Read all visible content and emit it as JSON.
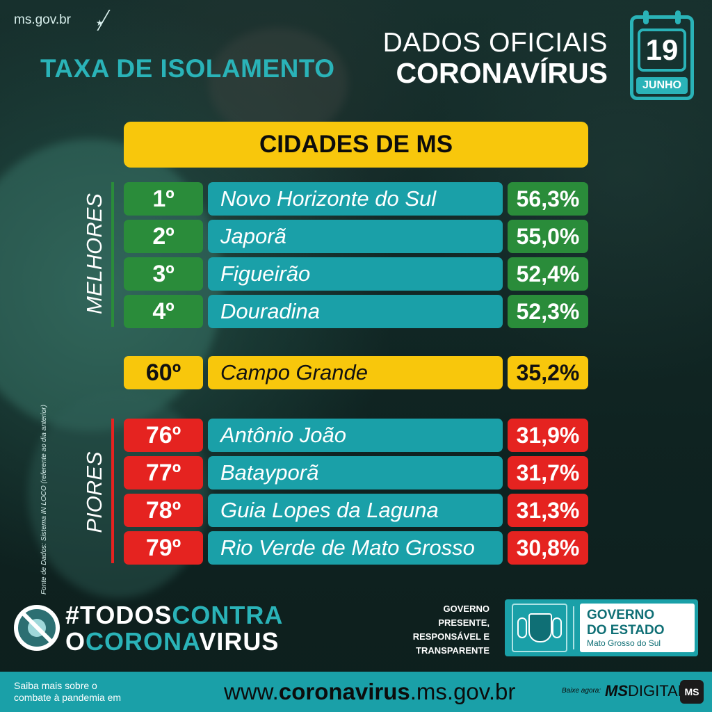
{
  "header": {
    "site": "ms.gov.br",
    "title": "TAXA DE ISOLAMENTO",
    "dados_line1": "DADOS OFICIAIS",
    "dados_line2": "CORONAVÍRUS",
    "calendar_day": "19",
    "calendar_month": "JUNHO"
  },
  "banner": {
    "title": "CIDADES DE MS"
  },
  "sections": {
    "best_label": "MELHORES",
    "worst_label": "PIORES"
  },
  "best": [
    {
      "rank": "1º",
      "city": "Novo Horizonte do Sul",
      "rate": "56,3%"
    },
    {
      "rank": "2º",
      "city": "Japorã",
      "rate": "55,0%"
    },
    {
      "rank": "3º",
      "city": "Figueirão",
      "rate": "52,4%"
    },
    {
      "rank": "4º",
      "city": "Douradina",
      "rate": "52,3%"
    }
  ],
  "highlight": {
    "rank": "60º",
    "city": "Campo Grande",
    "rate": "35,2%"
  },
  "worst": [
    {
      "rank": "76º",
      "city": "Antônio João",
      "rate": "31,9%"
    },
    {
      "rank": "77º",
      "city": "Batayporã",
      "rate": "31,7%"
    },
    {
      "rank": "78º",
      "city": "Guia Lopes da Laguna",
      "rate": "31,3%"
    },
    {
      "rank": "79º",
      "city": "Rio Verde de Mato Grosso",
      "rate": "30,8%"
    }
  ],
  "source": "Fonte de Dados: Sistema IN LOCO (referente ao dia anterior)",
  "hashtag": {
    "p1": "#TODOS",
    "p2": "CONTRA",
    "p3": "O",
    "p4": "CORONA",
    "p5": "VIRUS"
  },
  "gov_tagline": {
    "l1": "GOVERNO",
    "l2": "PRESENTE,",
    "l3": "RESPONSÁVEL E",
    "l4": "TRANSPARENTE"
  },
  "gov_box": {
    "l1": "GOVERNO",
    "l2": "DO ESTADO",
    "l3": "Mato Grosso do Sul"
  },
  "footer": {
    "saiba_l1": "Saiba mais sobre o",
    "saiba_l2": "combate à pandemia em",
    "url_prefix": "www.",
    "url_bold": "coronavirus",
    "url_suffix": ".ms.gov.br",
    "baixe": "Baixe agora:",
    "app_bold": "MS",
    "app_rest": "DIGITAL",
    "app_icon": "MS"
  },
  "colors": {
    "teal": "#1aa0a8",
    "green": "#2a8c3a",
    "red": "#e52320",
    "yellow": "#f8c70c"
  }
}
